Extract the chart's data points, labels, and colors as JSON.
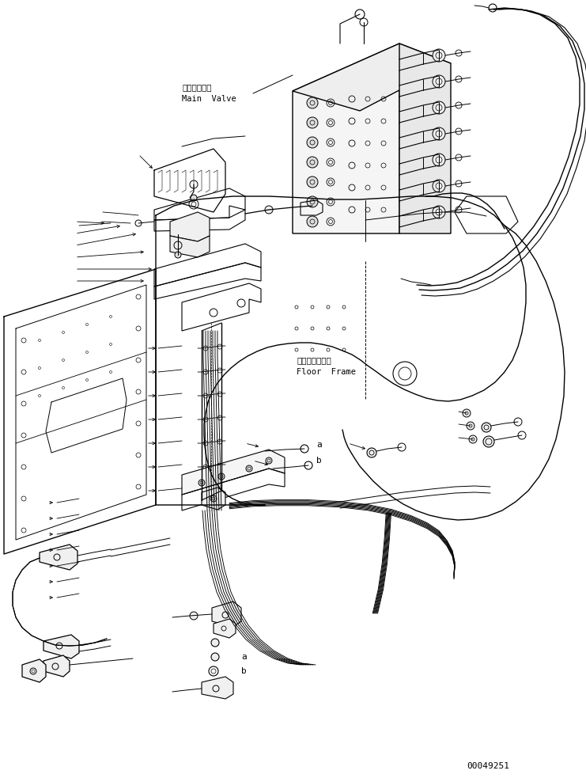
{
  "part_number": "00049251",
  "background_color": "#ffffff",
  "line_color": "#000000",
  "labels": {
    "main_valve_jp": "メインバルブ",
    "main_valve_en": "Main  Valve",
    "floor_frame_jp": "フロアフレーム",
    "floor_frame_en": "Floor  Frame"
  },
  "figsize": [
    7.41,
    9.83
  ],
  "dpi": 100
}
